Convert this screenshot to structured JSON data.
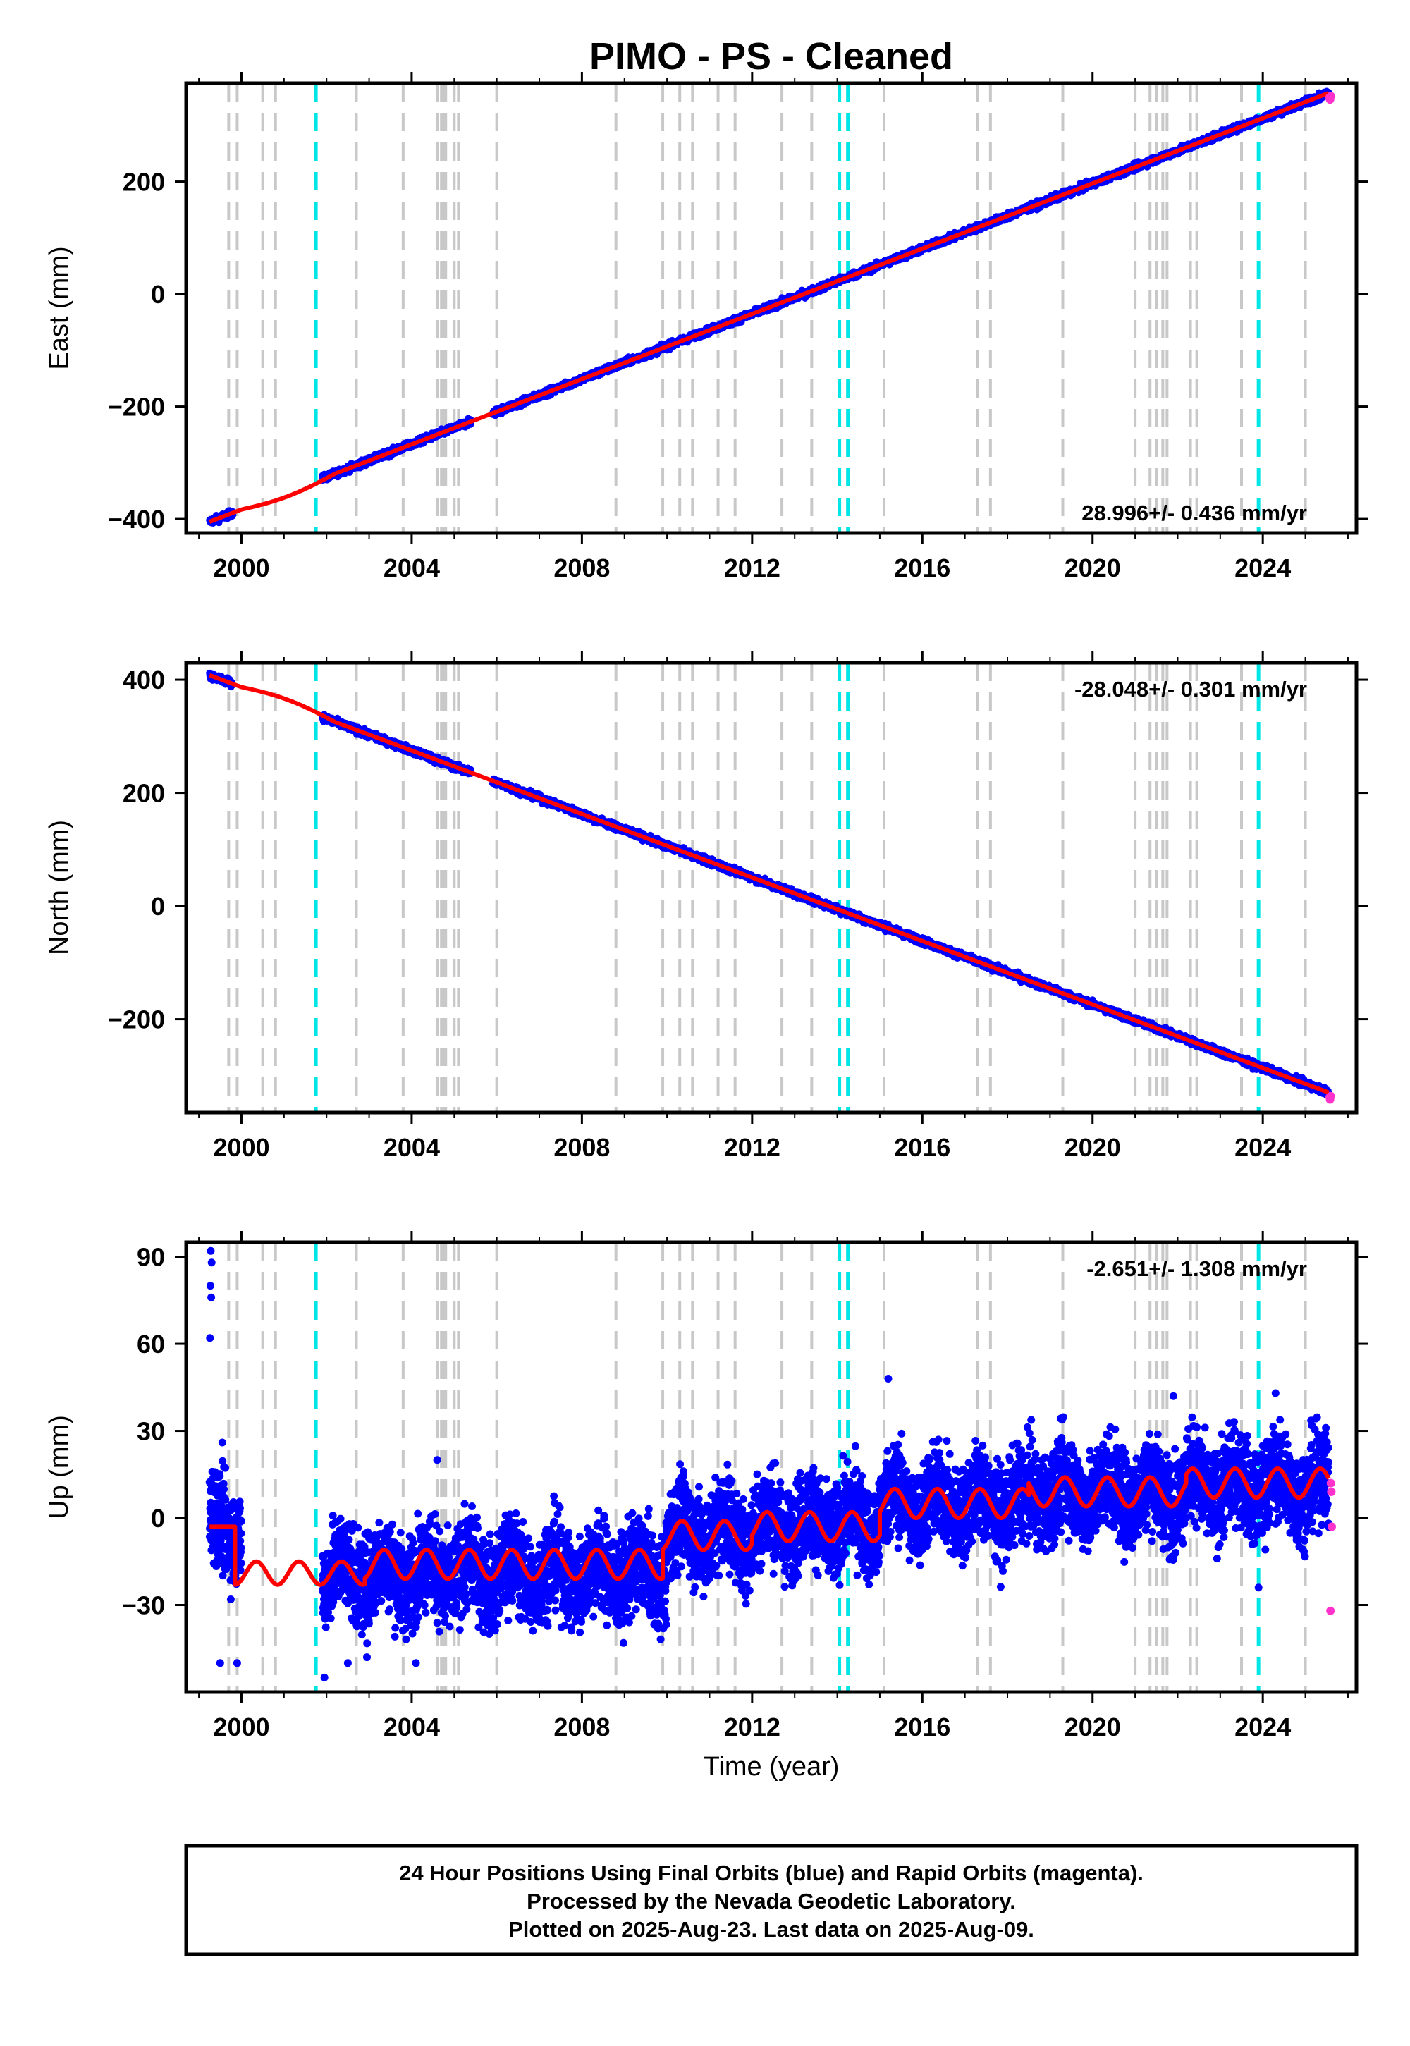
{
  "title": "PIMO  - PS - Cleaned",
  "xlabel": "Time (year)",
  "footer": [
    "24 Hour Positions Using Final Orbits (blue) and Rapid Orbits (magenta).",
    "Processed by the Nevada Geodetic Laboratory.",
    "Plotted on 2025-Aug-23. Last data on 2025-Aug-09."
  ],
  "colors": {
    "final_orbits": "#0000ff",
    "rapid_orbits": "#ff33cc",
    "model": "#ff0000",
    "equipment_change": "#c8c8c8",
    "earthquake": "#00e5e5"
  },
  "chart_data": [
    {
      "type": "scatter",
      "ylabel": "East (mm)",
      "rate_label": "28.996+/- 0.436 mm/yr",
      "rate_position": "bottom-right",
      "xlim": [
        1998.7,
        2026.2
      ],
      "ylim": [
        -425,
        375
      ],
      "x_ticks": [
        "2000",
        "2004",
        "2008",
        "2012",
        "2016",
        "2020",
        "2024"
      ],
      "y_ticks": [
        "-400",
        "-200",
        "0",
        "200"
      ],
      "y_tick_values": [
        -400,
        -200,
        0,
        200
      ],
      "model": {
        "start_year": 1999.25,
        "start_value": -405,
        "rate_mm_per_yr": 28.996,
        "gap": [
          2000.0,
          2002.2
        ],
        "gap_bend": -8
      },
      "series": [
        {
          "name": "Final Orbits",
          "start": 1999.25,
          "end": 2025.55,
          "intercept": -405,
          "rate": 28.996,
          "scatter": 3,
          "gaps": [
            [
              1999.8,
              2001.9
            ],
            [
              2005.4,
              2005.9
            ]
          ]
        },
        {
          "name": "Rapid Orbits",
          "points": [
            [
              2025.57,
              350
            ],
            [
              2025.58,
              346
            ],
            [
              2025.6,
              352
            ]
          ]
        }
      ]
    },
    {
      "type": "scatter",
      "ylabel": "North (mm)",
      "rate_label": "-28.048+/- 0.301 mm/yr",
      "rate_position": "top-right",
      "xlim": [
        1998.7,
        2026.2
      ],
      "ylim": [
        -365,
        430
      ],
      "x_ticks": [
        "2000",
        "2004",
        "2008",
        "2012",
        "2016",
        "2020",
        "2024"
      ],
      "y_ticks": [
        "-200",
        "0",
        "200",
        "400"
      ],
      "y_tick_values": [
        -200,
        0,
        200,
        400
      ],
      "model": {
        "start_year": 1999.25,
        "start_value": 408,
        "rate_mm_per_yr": -28.048,
        "gap": [
          2000.0,
          2002.2
        ],
        "gap_bend": 8
      },
      "series": [
        {
          "name": "Final Orbits",
          "start": 1999.25,
          "end": 2025.55,
          "intercept": 408,
          "rate": -28.048,
          "scatter": 3,
          "gaps": [
            [
              1999.8,
              2001.9
            ],
            [
              2005.4,
              2005.9
            ]
          ]
        },
        {
          "name": "Rapid Orbits",
          "points": [
            [
              2025.57,
              -338
            ],
            [
              2025.58,
              -342
            ],
            [
              2025.6,
              -336
            ]
          ]
        }
      ]
    },
    {
      "type": "scatter",
      "ylabel": "Up (mm)",
      "rate_label": "-2.651+/- 1.308 mm/yr",
      "rate_position": "top-right",
      "xlim": [
        1998.7,
        2026.2
      ],
      "ylim": [
        -60,
        95
      ],
      "x_ticks": [
        "2000",
        "2004",
        "2008",
        "2012",
        "2016",
        "2020",
        "2024"
      ],
      "y_ticks": [
        "-30",
        "0",
        "30",
        "60",
        "90"
      ],
      "y_tick_values": [
        -30,
        0,
        30,
        60,
        90
      ],
      "model": {
        "segments": [
          {
            "from": 1999.25,
            "to": 1999.85,
            "base": -3,
            "amp": 0
          },
          {
            "from": 1999.85,
            "to": 2002.9,
            "base": -19,
            "amp": 4
          },
          {
            "from": 2002.9,
            "to": 2009.9,
            "base": -16,
            "amp": 5
          },
          {
            "from": 2009.9,
            "to": 2012.0,
            "base": -6,
            "amp": 5
          },
          {
            "from": 2012.0,
            "to": 2015.0,
            "base": -3,
            "amp": 5
          },
          {
            "from": 2015.0,
            "to": 2018.5,
            "base": 5,
            "amp": 5
          },
          {
            "from": 2018.5,
            "to": 2022.2,
            "base": 9,
            "amp": 5
          },
          {
            "from": 2022.2,
            "to": 2025.55,
            "base": 12,
            "amp": 5
          }
        ]
      },
      "series": [
        {
          "name": "Final Orbits",
          "start": 1999.25,
          "end": 2025.55,
          "scatter": 8,
          "gaps": [
            [
              2000.0,
              2001.9
            ]
          ],
          "levels": [
            [
              1999.25,
              -3
            ],
            [
              2001.9,
              -19
            ],
            [
              2009.9,
              -16
            ],
            [
              2010.0,
              -5
            ],
            [
              2012.0,
              -2
            ],
            [
              2015.0,
              5
            ],
            [
              2018.5,
              9
            ],
            [
              2022.2,
              11
            ],
            [
              2025.55,
              11
            ]
          ],
          "outliers": [
            [
              1999.28,
              92
            ],
            [
              1999.3,
              88
            ],
            [
              1999.27,
              80
            ],
            [
              1999.29,
              76
            ],
            [
              1999.26,
              62
            ],
            [
              1999.55,
              26
            ],
            [
              1999.5,
              -50
            ],
            [
              1999.9,
              -50
            ],
            [
              2001.95,
              -55
            ],
            [
              2002.5,
              -50
            ],
            [
              2002.95,
              -48
            ],
            [
              2004.1,
              -50
            ],
            [
              2004.6,
              20
            ],
            [
              2015.2,
              48
            ],
            [
              2021.9,
              42
            ],
            [
              2024.3,
              43
            ],
            [
              2023.9,
              -24
            ]
          ]
        },
        {
          "name": "Rapid Orbits",
          "points": [
            [
              2025.6,
              12
            ],
            [
              2025.61,
              9
            ],
            [
              2025.62,
              -3
            ],
            [
              2025.59,
              -32
            ]
          ]
        }
      ]
    }
  ],
  "event_lines": {
    "equipment_change": [
      1999.7,
      1999.9,
      2000.5,
      2000.8,
      2002.7,
      2003.8,
      2004.6,
      2004.7,
      2004.75,
      2004.8,
      2005.0,
      2005.1,
      2006.0,
      2008.8,
      2009.9,
      2010.3,
      2010.6,
      2011.2,
      2011.6,
      2012.7,
      2013.4,
      2015.1,
      2017.3,
      2017.6,
      2019.3,
      2021.0,
      2021.35,
      2021.5,
      2021.65,
      2021.75,
      2022.3,
      2022.45,
      2023.5,
      2025.0
    ],
    "earthquake": [
      2001.75,
      2014.05,
      2014.25,
      2023.9
    ]
  }
}
